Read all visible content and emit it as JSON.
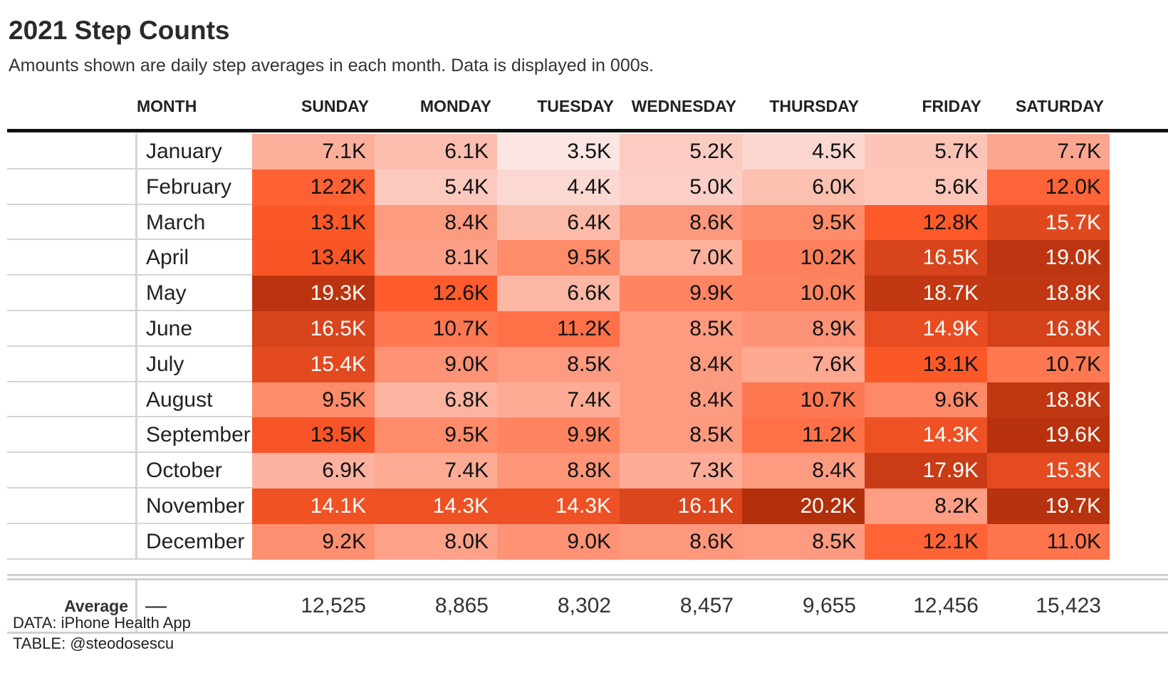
{
  "title": "2021 Step Counts",
  "subtitle": "Amounts shown are daily step averages in each month. Data is displayed in 000s.",
  "source_data": "DATA: iPhone Health App",
  "source_table": "TABLE: @steodosescu",
  "colors": {
    "scale_low": "#fbe6e4",
    "scale_mid": "#ff5a2a",
    "scale_high": "#b22f0c"
  },
  "chart_data": {
    "type": "table",
    "title": "2021 Step Counts",
    "subtitle": "Amounts shown are daily step averages in each month. Data is displayed in 000s.",
    "columns": [
      "MONTH",
      "SUNDAY",
      "MONDAY",
      "TUESDAY",
      "WEDNESDAY",
      "THURSDAY",
      "FRIDAY",
      "SATURDAY"
    ],
    "rows": [
      {
        "month": "January",
        "values": [
          7.1,
          6.1,
          3.5,
          5.2,
          4.5,
          5.7,
          7.7
        ]
      },
      {
        "month": "February",
        "values": [
          12.2,
          5.4,
          4.4,
          5.0,
          6.0,
          5.6,
          12.0
        ]
      },
      {
        "month": "March",
        "values": [
          13.1,
          8.4,
          6.4,
          8.6,
          9.5,
          12.8,
          15.7
        ]
      },
      {
        "month": "April",
        "values": [
          13.4,
          8.1,
          9.5,
          7.0,
          10.2,
          16.5,
          19.0
        ]
      },
      {
        "month": "May",
        "values": [
          19.3,
          12.6,
          6.6,
          9.9,
          10.0,
          18.7,
          18.8
        ]
      },
      {
        "month": "June",
        "values": [
          16.5,
          10.7,
          11.2,
          8.5,
          8.9,
          14.9,
          16.8
        ]
      },
      {
        "month": "July",
        "values": [
          15.4,
          9.0,
          8.5,
          8.4,
          7.6,
          13.1,
          10.7
        ]
      },
      {
        "month": "August",
        "values": [
          9.5,
          6.8,
          7.4,
          8.4,
          10.7,
          9.6,
          18.8
        ]
      },
      {
        "month": "September",
        "values": [
          13.5,
          9.5,
          9.9,
          8.5,
          11.2,
          14.3,
          19.6
        ]
      },
      {
        "month": "October",
        "values": [
          6.9,
          7.4,
          8.8,
          7.3,
          8.4,
          17.9,
          15.3
        ]
      },
      {
        "month": "November",
        "values": [
          14.1,
          14.3,
          14.3,
          16.1,
          20.2,
          8.2,
          19.7
        ]
      },
      {
        "month": "December",
        "values": [
          9.2,
          8.0,
          9.0,
          8.6,
          8.5,
          12.1,
          11.0
        ]
      }
    ],
    "value_suffix": "K",
    "average": {
      "label": "Average",
      "month": "—",
      "values": [
        "12,525",
        "8,865",
        "8,302",
        "8,457",
        "9,655",
        "12,456",
        "15,423"
      ]
    }
  }
}
